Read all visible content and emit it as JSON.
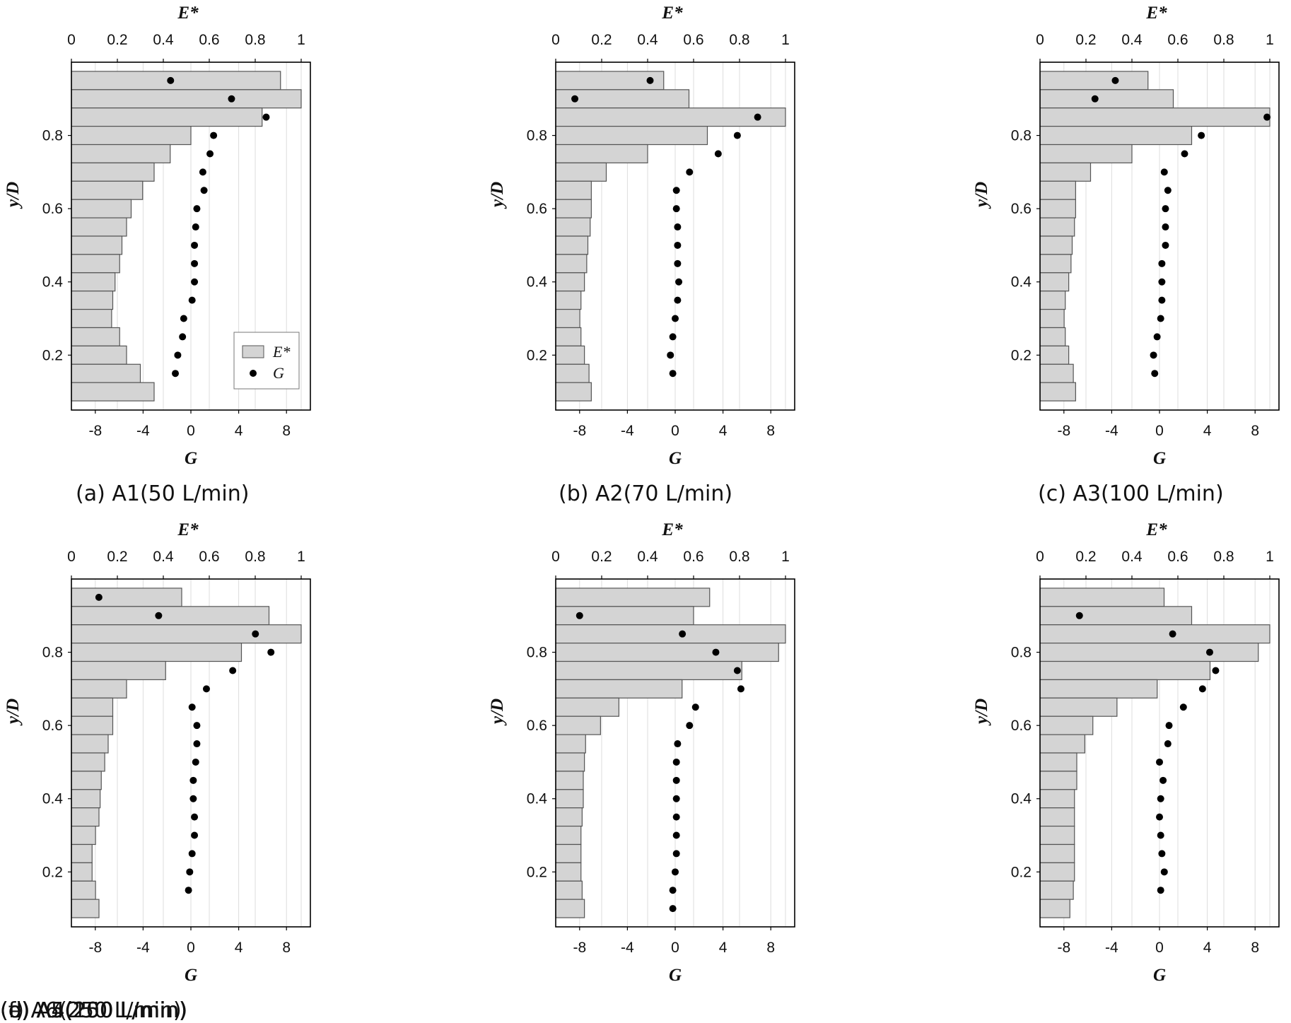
{
  "chart_data": [
    {
      "type": "bar",
      "caption": "(a) A1(50 L/min)",
      "top_xlabel": "E*",
      "bottom_xlabel": "G",
      "ylabel": "y/D",
      "top_ticks": [
        "0",
        "0.2",
        "0.4",
        "0.6",
        "0.8",
        "1"
      ],
      "bottom_ticks": [
        "-8",
        "-4",
        "0",
        "4",
        "8"
      ],
      "y_ticks": [
        "0.2",
        "0.4",
        "0.6",
        "0.8"
      ],
      "top_xlim": [
        0,
        1.04
      ],
      "bottom_xlim": [
        -10,
        10
      ],
      "ylim": [
        0.05,
        1.0
      ],
      "legend": [
        {
          "label": "E*",
          "marker": "bar"
        },
        {
          "label": "G",
          "marker": "dot"
        }
      ],
      "y": [
        0.95,
        0.9,
        0.85,
        0.8,
        0.75,
        0.7,
        0.65,
        0.6,
        0.55,
        0.5,
        0.45,
        0.4,
        0.35,
        0.3,
        0.25,
        0.2,
        0.15,
        0.1
      ],
      "E_values": [
        0.91,
        1.0,
        0.83,
        0.52,
        0.43,
        0.36,
        0.31,
        0.26,
        0.24,
        0.22,
        0.21,
        0.19,
        0.18,
        0.175,
        0.21,
        0.24,
        0.3,
        0.36
      ],
      "G_values": [
        -1.7,
        3.4,
        6.3,
        1.9,
        1.6,
        1.0,
        1.1,
        0.5,
        0.4,
        0.3,
        0.3,
        0.3,
        0.1,
        -0.6,
        -0.7,
        -1.1,
        -1.3,
        null
      ]
    },
    {
      "type": "bar",
      "caption": "(b) A2(70 L/min)",
      "top_xlabel": "E*",
      "bottom_xlabel": "G",
      "ylabel": "y/D",
      "top_ticks": [
        "0",
        "0.2",
        "0.4",
        "0.6",
        "0.8",
        "1"
      ],
      "bottom_ticks": [
        "-8",
        "-4",
        "0",
        "4",
        "8"
      ],
      "y_ticks": [
        "0.2",
        "0.4",
        "0.6",
        "0.8"
      ],
      "top_xlim": [
        0,
        1.04
      ],
      "bottom_xlim": [
        -10,
        10
      ],
      "ylim": [
        0.05,
        1.0
      ],
      "y": [
        0.95,
        0.9,
        0.85,
        0.8,
        0.75,
        0.7,
        0.65,
        0.6,
        0.55,
        0.5,
        0.45,
        0.4,
        0.35,
        0.3,
        0.25,
        0.2,
        0.15,
        0.1
      ],
      "E_values": [
        0.47,
        0.58,
        1.0,
        0.66,
        0.4,
        0.22,
        0.155,
        0.155,
        0.15,
        0.14,
        0.135,
        0.125,
        0.11,
        0.105,
        0.11,
        0.125,
        0.145,
        0.155
      ],
      "G_values": [
        -2.1,
        -8.4,
        6.9,
        5.2,
        3.6,
        1.2,
        0.1,
        0.1,
        0.2,
        0.2,
        0.2,
        0.3,
        0.2,
        0.0,
        -0.2,
        -0.4,
        -0.2,
        null
      ]
    },
    {
      "type": "bar",
      "caption": "(c) A3(100 L/min)",
      "top_xlabel": "E*",
      "bottom_xlabel": "G",
      "ylabel": "y/D",
      "top_ticks": [
        "0",
        "0.2",
        "0.4",
        "0.6",
        "0.8",
        "1"
      ],
      "bottom_ticks": [
        "-8",
        "-4",
        "0",
        "4",
        "8"
      ],
      "y_ticks": [
        "0.2",
        "0.4",
        "0.6",
        "0.8"
      ],
      "top_xlim": [
        0,
        1.04
      ],
      "bottom_xlim": [
        -10,
        10
      ],
      "ylim": [
        0.05,
        1.0
      ],
      "y": [
        0.95,
        0.9,
        0.85,
        0.8,
        0.75,
        0.7,
        0.65,
        0.6,
        0.55,
        0.5,
        0.45,
        0.4,
        0.35,
        0.3,
        0.25,
        0.2,
        0.15,
        0.1
      ],
      "E_values": [
        0.47,
        0.58,
        1.0,
        0.66,
        0.4,
        0.22,
        0.155,
        0.155,
        0.15,
        0.14,
        0.135,
        0.125,
        0.11,
        0.105,
        0.11,
        0.125,
        0.145,
        0.155
      ],
      "G_values": [
        -3.7,
        -5.4,
        9.0,
        3.5,
        2.1,
        0.4,
        0.7,
        0.5,
        0.5,
        0.5,
        0.2,
        0.2,
        0.2,
        0.1,
        -0.2,
        -0.5,
        -0.4,
        null
      ]
    },
    {
      "type": "bar",
      "caption": "(d) A4(150 L/min)",
      "top_xlabel": "E*",
      "bottom_xlabel": "G",
      "ylabel": "y/D",
      "top_ticks": [
        "0",
        "0.2",
        "0.4",
        "0.6",
        "0.8",
        "1"
      ],
      "bottom_ticks": [
        "-8",
        "-4",
        "0",
        "4",
        "8"
      ],
      "y_ticks": [
        "0.2",
        "0.4",
        "0.6",
        "0.8"
      ],
      "top_xlim": [
        0,
        1.04
      ],
      "bottom_xlim": [
        -10,
        10
      ],
      "ylim": [
        0.05,
        1.0
      ],
      "y": [
        0.95,
        0.9,
        0.85,
        0.8,
        0.75,
        0.7,
        0.65,
        0.6,
        0.55,
        0.5,
        0.45,
        0.4,
        0.35,
        0.3,
        0.25,
        0.2,
        0.15,
        0.1
      ],
      "E_values": [
        0.48,
        0.86,
        1.0,
        0.74,
        0.41,
        0.24,
        0.18,
        0.18,
        0.16,
        0.145,
        0.13,
        0.125,
        0.12,
        0.105,
        0.09,
        0.09,
        0.105,
        0.12
      ],
      "G_values": [
        -7.7,
        -2.7,
        5.4,
        6.7,
        3.5,
        1.3,
        0.1,
        0.5,
        0.5,
        0.4,
        0.2,
        0.2,
        0.3,
        0.3,
        0.1,
        -0.1,
        -0.2,
        null
      ]
    },
    {
      "type": "bar",
      "caption": "(e) A5(200 L/min)",
      "top_xlabel": "E*",
      "bottom_xlabel": "G",
      "ylabel": "y/D",
      "top_ticks": [
        "0",
        "0.2",
        "0.4",
        "0.6",
        "0.8",
        "1"
      ],
      "bottom_ticks": [
        "-8",
        "-4",
        "0",
        "4",
        "8"
      ],
      "y_ticks": [
        "0.2",
        "0.4",
        "0.6",
        "0.8"
      ],
      "top_xlim": [
        0,
        1.04
      ],
      "bottom_xlim": [
        -10,
        10
      ],
      "ylim": [
        0.05,
        1.0
      ],
      "y": [
        0.95,
        0.9,
        0.85,
        0.8,
        0.75,
        0.7,
        0.65,
        0.6,
        0.55,
        0.5,
        0.45,
        0.4,
        0.35,
        0.3,
        0.25,
        0.2,
        0.15,
        0.1
      ],
      "E_values": [
        0.67,
        0.6,
        1.0,
        0.97,
        0.81,
        0.55,
        0.275,
        0.195,
        0.13,
        0.125,
        0.12,
        0.12,
        0.115,
        0.11,
        0.11,
        0.11,
        0.115,
        0.125
      ],
      "G_values": [
        null,
        -8.0,
        0.6,
        3.4,
        5.2,
        5.5,
        1.7,
        1.2,
        0.2,
        0.1,
        0.1,
        0.1,
        0.1,
        0.1,
        0.1,
        0.0,
        -0.2,
        -0.2
      ]
    },
    {
      "type": "bar",
      "caption": "(f) A6(250 L/min)",
      "top_xlabel": "E*",
      "bottom_xlabel": "G",
      "ylabel": "y/D",
      "top_ticks": [
        "0",
        "0.2",
        "0.4",
        "0.6",
        "0.8",
        "1"
      ],
      "bottom_ticks": [
        "-8",
        "-4",
        "0",
        "4",
        "8"
      ],
      "y_ticks": [
        "0.2",
        "0.4",
        "0.6",
        "0.8"
      ],
      "top_xlim": [
        0,
        1.04
      ],
      "bottom_xlim": [
        -10,
        10
      ],
      "ylim": [
        0.05,
        1.0
      ],
      "y": [
        0.95,
        0.9,
        0.85,
        0.8,
        0.75,
        0.7,
        0.65,
        0.6,
        0.55,
        0.5,
        0.45,
        0.4,
        0.35,
        0.3,
        0.25,
        0.2,
        0.15,
        0.1
      ],
      "E_values": [
        0.54,
        0.66,
        1.0,
        0.95,
        0.74,
        0.51,
        0.335,
        0.23,
        0.195,
        0.16,
        0.16,
        0.15,
        0.15,
        0.15,
        0.15,
        0.15,
        0.145,
        0.13
      ],
      "G_values": [
        null,
        -6.7,
        1.1,
        4.2,
        4.7,
        3.6,
        2.0,
        0.8,
        0.7,
        0.0,
        0.3,
        0.1,
        0.0,
        0.1,
        0.2,
        0.4,
        0.1,
        null
      ]
    }
  ],
  "colors": {
    "bar_fill": "#d4d4d4",
    "bar_stroke": "#555555",
    "marker": "#000000",
    "gridline": "#dddddd",
    "frame": "#000000"
  }
}
